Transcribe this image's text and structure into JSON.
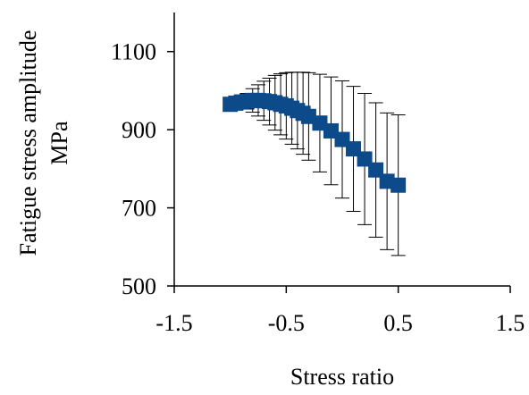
{
  "chart_data": {
    "type": "scatter",
    "xlabel": "Stress ratio",
    "ylabel": [
      "Fatigue stress amplitude",
      "MPa"
    ],
    "xlim": [
      -1.5,
      1.5
    ],
    "ylim": [
      500,
      1200
    ],
    "xticks": [
      -1.5,
      -0.5,
      0.5,
      1.5
    ],
    "xtick_labels": [
      "-1.5",
      "-0.5",
      "0.5",
      "1.5"
    ],
    "yticks": [
      500,
      700,
      900,
      1100
    ],
    "ytick_labels": [
      "500",
      "700",
      "900",
      "1100"
    ],
    "grid": false,
    "legend": "none",
    "marker": "square",
    "marker_color": "#0d4a8a",
    "errorbar_color": "#000000",
    "series": [
      {
        "points": [
          {
            "x": -1.0,
            "y": 965,
            "err": 0
          },
          {
            "x": -0.95,
            "y": 968,
            "err": 0
          },
          {
            "x": -0.9,
            "y": 971,
            "err": 10
          },
          {
            "x": -0.85,
            "y": 973,
            "err": 20
          },
          {
            "x": -0.8,
            "y": 975,
            "err": 30
          },
          {
            "x": -0.75,
            "y": 975,
            "err": 40
          },
          {
            "x": -0.7,
            "y": 974,
            "err": 50
          },
          {
            "x": -0.65,
            "y": 972,
            "err": 60
          },
          {
            "x": -0.6,
            "y": 969,
            "err": 70
          },
          {
            "x": -0.55,
            "y": 965,
            "err": 78
          },
          {
            "x": -0.5,
            "y": 961,
            "err": 85
          },
          {
            "x": -0.45,
            "y": 955,
            "err": 92
          },
          {
            "x": -0.4,
            "y": 949,
            "err": 98
          },
          {
            "x": -0.35,
            "y": 942,
            "err": 105
          },
          {
            "x": -0.3,
            "y": 934,
            "err": 112
          },
          {
            "x": -0.2,
            "y": 917,
            "err": 125
          },
          {
            "x": -0.1,
            "y": 897,
            "err": 138
          },
          {
            "x": 0.0,
            "y": 875,
            "err": 150
          },
          {
            "x": 0.1,
            "y": 851,
            "err": 160
          },
          {
            "x": 0.2,
            "y": 825,
            "err": 168
          },
          {
            "x": 0.3,
            "y": 797,
            "err": 172
          },
          {
            "x": 0.4,
            "y": 768,
            "err": 175
          },
          {
            "x": 0.5,
            "y": 758,
            "err": 180
          }
        ]
      }
    ]
  }
}
